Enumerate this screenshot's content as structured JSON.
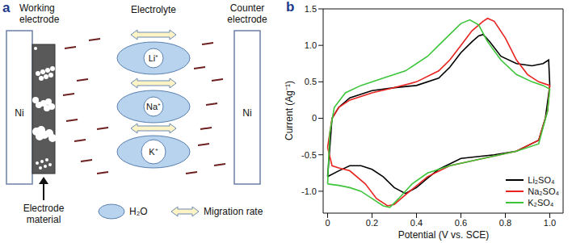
{
  "panel_labels": [
    "a",
    "b"
  ],
  "diagram": {
    "top_labels": {
      "working_electrode": "Working electrode",
      "electrolyte": "Electrolyte",
      "counter_electrode": "Counter electrode"
    },
    "electrodes": [
      "Ni",
      "Ni"
    ],
    "ions": [
      "Li⁺",
      "Na⁺",
      "K⁺"
    ],
    "bottom_labels": {
      "electrode_material": "Electrode material",
      "water": "H₂O",
      "migration_rate": "Migration rate"
    }
  },
  "chart_data": {
    "type": "line",
    "xlabel": "Potential (V vs. SCE)",
    "ylabel": "Current (Ag⁻¹)",
    "xlim": [
      -0.02,
      1.06
    ],
    "ylim": [
      -1.3,
      1.5
    ],
    "xticks": [
      0,
      0.2,
      0.4,
      0.6,
      0.8,
      {
        "value": 1,
        "label": "1.0"
      }
    ],
    "yticks": [
      {
        "value": -1,
        "label": "-1.0"
      },
      -0.5,
      0,
      0.5,
      {
        "value": 1,
        "label": "1.0"
      },
      1.5
    ],
    "legend": "lower right",
    "grid": false,
    "series": [
      {
        "name": "Li₂SO₄",
        "color": "#000000",
        "x": [
          0,
          0.02,
          0.05,
          0.1,
          0.2,
          0.3,
          0.4,
          0.5,
          0.55,
          0.6,
          0.65,
          0.68,
          0.7,
          0.73,
          0.78,
          0.85,
          0.92,
          0.97,
          0.995,
          1.0,
          0.98,
          0.95,
          0.85,
          0.75,
          0.6,
          0.5,
          0.45,
          0.4,
          0.35,
          0.3,
          0.25,
          0.2,
          0.15,
          0.1,
          0.05,
          0
        ],
        "values": [
          -0.8,
          0.0,
          0.15,
          0.28,
          0.38,
          0.42,
          0.45,
          0.55,
          0.7,
          0.9,
          1.05,
          1.13,
          1.15,
          1.05,
          0.85,
          0.75,
          0.72,
          0.75,
          0.8,
          0.45,
          0.0,
          -0.3,
          -0.45,
          -0.5,
          -0.55,
          -0.7,
          -0.82,
          -0.95,
          -1.03,
          -0.95,
          -0.8,
          -0.7,
          -0.65,
          -0.65,
          -0.72,
          -0.8
        ]
      },
      {
        "name": "Na₂SO₄",
        "color": "#e8231f",
        "x": [
          0,
          0.02,
          0.05,
          0.1,
          0.2,
          0.3,
          0.4,
          0.5,
          0.55,
          0.6,
          0.65,
          0.7,
          0.72,
          0.75,
          0.8,
          0.85,
          0.9,
          0.95,
          1.0,
          0.99,
          0.95,
          0.85,
          0.7,
          0.55,
          0.45,
          0.35,
          0.3,
          0.27,
          0.22,
          0.17,
          0.1,
          0.05,
          0.02,
          0
        ],
        "values": [
          -0.4,
          0.0,
          0.15,
          0.25,
          0.35,
          0.42,
          0.5,
          0.65,
          0.8,
          1.0,
          1.2,
          1.33,
          1.37,
          1.33,
          1.1,
          0.8,
          0.6,
          0.5,
          0.45,
          0.1,
          -0.3,
          -0.45,
          -0.55,
          -0.65,
          -0.8,
          -1.05,
          -1.18,
          -1.2,
          -1.1,
          -0.9,
          -0.72,
          -0.68,
          -0.65,
          -0.4
        ]
      },
      {
        "name": "K₂SO₄",
        "color": "#3dc43a",
        "x": [
          0,
          0.01,
          0.03,
          0.08,
          0.15,
          0.25,
          0.35,
          0.45,
          0.5,
          0.55,
          0.6,
          0.64,
          0.68,
          0.72,
          0.78,
          0.85,
          0.92,
          0.97,
          1.0,
          0.99,
          0.95,
          0.85,
          0.7,
          0.55,
          0.45,
          0.38,
          0.32,
          0.28,
          0.25,
          0.2,
          0.15,
          0.1,
          0.05,
          0
        ],
        "values": [
          -0.9,
          -0.2,
          0.15,
          0.35,
          0.45,
          0.55,
          0.65,
          0.85,
          1.0,
          1.15,
          1.3,
          1.35,
          1.28,
          1.05,
          0.8,
          0.6,
          0.5,
          0.45,
          0.4,
          0.1,
          -0.35,
          -0.45,
          -0.55,
          -0.65,
          -0.75,
          -0.9,
          -1.1,
          -1.22,
          -1.2,
          -1.1,
          -1.0,
          -0.95,
          -0.92,
          -0.9
        ]
      }
    ]
  }
}
